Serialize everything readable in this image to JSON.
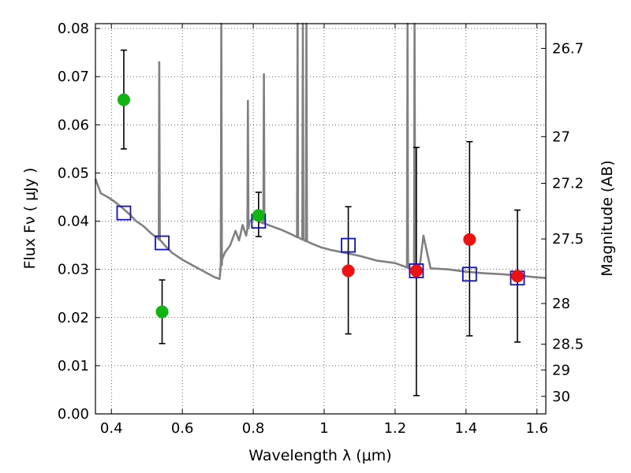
{
  "chart_data": {
    "type": "scatter",
    "title": "",
    "xlabel": "Wavelength  λ (μm)",
    "ylabel": "Flux  Fν  ( μJy )",
    "y2label": "Magnitude (AB)",
    "xlim": [
      0.355,
      1.625
    ],
    "ylim": [
      0.0,
      0.081
    ],
    "grid": true,
    "x_ticks": [
      {
        "value": 0.4,
        "label": "0.4"
      },
      {
        "value": 0.6,
        "label": "0.6"
      },
      {
        "value": 0.8,
        "label": "0.8"
      },
      {
        "value": 1.0,
        "label": "1"
      },
      {
        "value": 1.2,
        "label": "1.2"
      },
      {
        "value": 1.4,
        "label": "1.4"
      },
      {
        "value": 1.6,
        "label": "1.6"
      }
    ],
    "y_ticks": [
      {
        "value": 0.0,
        "label": "0.00"
      },
      {
        "value": 0.01,
        "label": "0.01"
      },
      {
        "value": 0.02,
        "label": "0.02"
      },
      {
        "value": 0.03,
        "label": "0.03"
      },
      {
        "value": 0.04,
        "label": "0.04"
      },
      {
        "value": 0.05,
        "label": "0.05"
      },
      {
        "value": 0.06,
        "label": "0.06"
      },
      {
        "value": 0.07,
        "label": "0.07"
      },
      {
        "value": 0.08,
        "label": "0.08"
      }
    ],
    "y2_ticks": [
      {
        "value": 26.7,
        "label": "26.7"
      },
      {
        "value": 27.0,
        "label": "27"
      },
      {
        "value": 27.2,
        "label": "27.2"
      },
      {
        "value": 27.5,
        "label": "27.5"
      },
      {
        "value": 28.0,
        "label": "28"
      },
      {
        "value": 28.5,
        "label": "28.5"
      },
      {
        "value": 29.0,
        "label": "29"
      },
      {
        "value": 30.0,
        "label": "30"
      }
    ],
    "colors": {
      "model": "#808080",
      "optical_points": "#11b511",
      "nir_points": "#ee1111",
      "model_boxes": "#1111cc",
      "errorbar": "#000000"
    },
    "model_spectrum": [
      [
        0.355,
        0.0488
      ],
      [
        0.37,
        0.0458
      ],
      [
        0.39,
        0.045
      ],
      [
        0.41,
        0.044
      ],
      [
        0.43,
        0.0428
      ],
      [
        0.45,
        0.0415
      ],
      [
        0.47,
        0.04
      ],
      [
        0.49,
        0.039
      ],
      [
        0.5,
        0.0383
      ],
      [
        0.51,
        0.0376
      ],
      [
        0.52,
        0.037
      ],
      [
        0.53,
        0.0366
      ],
      [
        0.55,
        0.035
      ],
      [
        0.57,
        0.0335
      ],
      [
        0.6,
        0.032
      ],
      [
        0.63,
        0.0308
      ],
      [
        0.66,
        0.0296
      ],
      [
        0.69,
        0.0284
      ],
      [
        0.705,
        0.028
      ],
      [
        0.712,
        0.032
      ],
      [
        0.72,
        0.0335
      ],
      [
        0.735,
        0.035
      ],
      [
        0.75,
        0.038
      ],
      [
        0.76,
        0.036
      ],
      [
        0.77,
        0.0392
      ],
      [
        0.78,
        0.037
      ],
      [
        0.79,
        0.04
      ],
      [
        0.8,
        0.0405
      ],
      [
        0.82,
        0.0398
      ],
      [
        0.85,
        0.039
      ],
      [
        0.88,
        0.0382
      ],
      [
        0.91,
        0.0372
      ],
      [
        0.93,
        0.0365
      ],
      [
        0.96,
        0.0355
      ],
      [
        0.99,
        0.0346
      ],
      [
        1.02,
        0.034
      ],
      [
        1.06,
        0.0334
      ],
      [
        1.1,
        0.0328
      ],
      [
        1.15,
        0.0318
      ],
      [
        1.2,
        0.0313
      ],
      [
        1.23,
        0.0305
      ],
      [
        1.25,
        0.03
      ],
      [
        1.27,
        0.031
      ],
      [
        1.28,
        0.037
      ],
      [
        1.29,
        0.0335
      ],
      [
        1.3,
        0.0302
      ],
      [
        1.35,
        0.03
      ],
      [
        1.4,
        0.0295
      ],
      [
        1.45,
        0.0292
      ],
      [
        1.5,
        0.029
      ],
      [
        1.55,
        0.0287
      ],
      [
        1.59,
        0.0284
      ],
      [
        1.625,
        0.0282
      ]
    ],
    "model_lines": [
      {
        "x": 0.535,
        "peak": 0.073
      },
      {
        "x": 0.71,
        "peak": 0.081
      },
      {
        "x": 0.785,
        "peak": 0.065
      },
      {
        "x": 0.83,
        "peak": 0.0705
      },
      {
        "x": 0.925,
        "peak": 0.081
      },
      {
        "x": 0.94,
        "peak": 0.081
      },
      {
        "x": 0.95,
        "peak": 0.081
      },
      {
        "x": 1.235,
        "peak": 0.081
      },
      {
        "x": 1.255,
        "peak": 0.081
      }
    ],
    "model_boxes": [
      {
        "x": 0.435,
        "y": 0.0417
      },
      {
        "x": 0.543,
        "y": 0.0355
      },
      {
        "x": 0.815,
        "y": 0.04
      },
      {
        "x": 1.068,
        "y": 0.035
      },
      {
        "x": 1.26,
        "y": 0.0297
      },
      {
        "x": 1.41,
        "y": 0.029
      },
      {
        "x": 1.545,
        "y": 0.0282
      }
    ],
    "observed_optical": [
      {
        "x": 0.435,
        "y": 0.0652,
        "yerr_low": 0.055,
        "yerr_high": 0.0755
      },
      {
        "x": 0.543,
        "y": 0.0212,
        "yerr_low": 0.0146,
        "yerr_high": 0.0278
      },
      {
        "x": 0.815,
        "y": 0.0412,
        "yerr_low": 0.0368,
        "yerr_high": 0.046
      }
    ],
    "observed_nir": [
      {
        "x": 1.068,
        "y": 0.0297,
        "yerr_low": 0.0166,
        "yerr_high": 0.043
      },
      {
        "x": 1.26,
        "y": 0.0297,
        "yerr_low": 0.0038,
        "yerr_high": 0.0553
      },
      {
        "x": 1.41,
        "y": 0.0362,
        "yerr_low": 0.0162,
        "yerr_high": 0.0565
      },
      {
        "x": 1.545,
        "y": 0.0286,
        "yerr_low": 0.0149,
        "yerr_high": 0.0423
      }
    ]
  }
}
